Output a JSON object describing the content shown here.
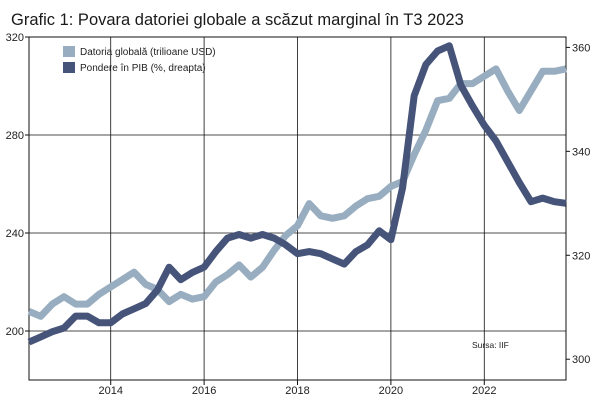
{
  "title": "Grafic 1: Povara datoriei globale a scăzut marginal în T3 2023",
  "source": "Sursa: IIF",
  "chart_data": {
    "type": "line",
    "x_ticks": [
      "2014",
      "2016",
      "2018",
      "2020",
      "2022"
    ],
    "y_left": {
      "ticks": [
        "200",
        "240",
        "280",
        "320"
      ],
      "range": [
        180,
        320
      ]
    },
    "y_right": {
      "ticks": [
        "300",
        "320",
        "340",
        "360"
      ],
      "range": [
        296,
        362
      ]
    },
    "x_range": [
      2012.25,
      2023.75
    ],
    "grid": true,
    "legend_position": "top-left",
    "series": [
      {
        "name": "Datoria globală (trilioane USD)",
        "axis": "left",
        "color": "#98aec0",
        "points": [
          [
            2012.25,
            208
          ],
          [
            2012.5,
            206
          ],
          [
            2012.75,
            211
          ],
          [
            2013.0,
            214
          ],
          [
            2013.25,
            211
          ],
          [
            2013.5,
            211
          ],
          [
            2013.75,
            215
          ],
          [
            2014.0,
            218
          ],
          [
            2014.25,
            221
          ],
          [
            2014.5,
            224
          ],
          [
            2014.75,
            219
          ],
          [
            2015.0,
            217
          ],
          [
            2015.25,
            212
          ],
          [
            2015.5,
            215
          ],
          [
            2015.75,
            213
          ],
          [
            2016.0,
            214
          ],
          [
            2016.25,
            220
          ],
          [
            2016.5,
            223
          ],
          [
            2016.75,
            227
          ],
          [
            2017.0,
            222
          ],
          [
            2017.25,
            226
          ],
          [
            2017.5,
            233
          ],
          [
            2017.75,
            239
          ],
          [
            2018.0,
            243
          ],
          [
            2018.25,
            252
          ],
          [
            2018.5,
            247
          ],
          [
            2018.75,
            246
          ],
          [
            2019.0,
            247
          ],
          [
            2019.25,
            251
          ],
          [
            2019.5,
            254
          ],
          [
            2019.75,
            255
          ],
          [
            2020.0,
            259
          ],
          [
            2020.25,
            261
          ],
          [
            2020.5,
            272
          ],
          [
            2020.75,
            282
          ],
          [
            2021.0,
            294
          ],
          [
            2021.25,
            295
          ],
          [
            2021.5,
            301
          ],
          [
            2021.75,
            301
          ],
          [
            2022.0,
            304
          ],
          [
            2022.25,
            307
          ],
          [
            2022.5,
            298
          ],
          [
            2022.75,
            290
          ],
          [
            2023.0,
            298
          ],
          [
            2023.25,
            306
          ],
          [
            2023.5,
            306
          ],
          [
            2023.75,
            307
          ]
        ]
      },
      {
        "name": "Pondere în PIB (%, dreapta)",
        "axis": "right",
        "color": "#46547a",
        "points": [
          [
            2012.25,
            303.3
          ],
          [
            2012.5,
            304.3
          ],
          [
            2012.75,
            305.3
          ],
          [
            2013.0,
            306.0
          ],
          [
            2013.25,
            308.3
          ],
          [
            2013.5,
            308.3
          ],
          [
            2013.75,
            307.0
          ],
          [
            2014.0,
            307.0
          ],
          [
            2014.25,
            308.7
          ],
          [
            2014.5,
            309.7
          ],
          [
            2014.75,
            310.7
          ],
          [
            2015.0,
            313.3
          ],
          [
            2015.25,
            317.7
          ],
          [
            2015.5,
            315.3
          ],
          [
            2015.75,
            316.7
          ],
          [
            2016.0,
            317.7
          ],
          [
            2016.25,
            320.7
          ],
          [
            2016.5,
            323.3
          ],
          [
            2016.75,
            324.0
          ],
          [
            2017.0,
            323.3
          ],
          [
            2017.25,
            324.0
          ],
          [
            2017.5,
            323.3
          ],
          [
            2017.75,
            322.0
          ],
          [
            2018.0,
            320.3
          ],
          [
            2018.25,
            320.7
          ],
          [
            2018.5,
            320.3
          ],
          [
            2018.75,
            319.3
          ],
          [
            2019.0,
            318.3
          ],
          [
            2019.25,
            320.7
          ],
          [
            2019.5,
            322.0
          ],
          [
            2019.75,
            324.7
          ],
          [
            2020.0,
            323.0
          ],
          [
            2020.25,
            333.0
          ],
          [
            2020.5,
            350.7
          ],
          [
            2020.75,
            356.7
          ],
          [
            2021.0,
            359.3
          ],
          [
            2021.25,
            360.3
          ],
          [
            2021.5,
            352.7
          ],
          [
            2021.75,
            348.7
          ],
          [
            2022.0,
            345.0
          ],
          [
            2022.25,
            342.0
          ],
          [
            2022.5,
            338.0
          ],
          [
            2022.75,
            334.0
          ],
          [
            2023.0,
            330.3
          ],
          [
            2023.25,
            331.0
          ],
          [
            2023.5,
            330.3
          ],
          [
            2023.75,
            330.0
          ]
        ]
      }
    ]
  }
}
